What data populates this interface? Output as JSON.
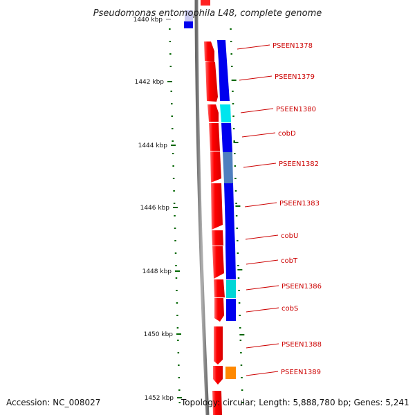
{
  "title": "Pseudomonas entomophila L48, complete genome",
  "scale_marks": [
    {
      "label": "1440 kbp",
      "faded": true
    },
    {
      "label": "1442 kbp"
    },
    {
      "label": "1444 kbp"
    },
    {
      "label": "1446 kbp"
    },
    {
      "label": "1448 kbp"
    },
    {
      "label": "1450 kbp"
    },
    {
      "label": "1452 kbp"
    }
  ],
  "genes": [
    {
      "label": "PSEEN1378",
      "color": "#0000ee"
    },
    {
      "label": "PSEEN1379",
      "color": "#0000ee"
    },
    {
      "label": "PSEEN1380",
      "color": "#00e5ee"
    },
    {
      "label": "cobD",
      "color": "#0000ee"
    },
    {
      "label": "PSEEN1382",
      "color": "#4f7fbf"
    },
    {
      "label": "PSEEN1383",
      "color": "#0000ee"
    },
    {
      "label": "cobU",
      "color": "#0000ee"
    },
    {
      "label": "cobT",
      "color": "#0000ee"
    },
    {
      "label": "PSEEN1386",
      "color": "#00d6d6"
    },
    {
      "label": "cobS",
      "color": "#0000ee"
    },
    {
      "label": "PSEEN1388",
      "color": null
    },
    {
      "label": "PSEEN1389",
      "color": "#ff8800"
    }
  ],
  "colors": {
    "strand_forward": "#ff0000",
    "backbone": "#808080",
    "label_red": "#cc0000",
    "tick_green": "#006600"
  },
  "footer": {
    "accession": "Accession: NC_008027",
    "topology": "Topology: circular; Length: 5,888,780 bp; Genes: 5,241"
  }
}
